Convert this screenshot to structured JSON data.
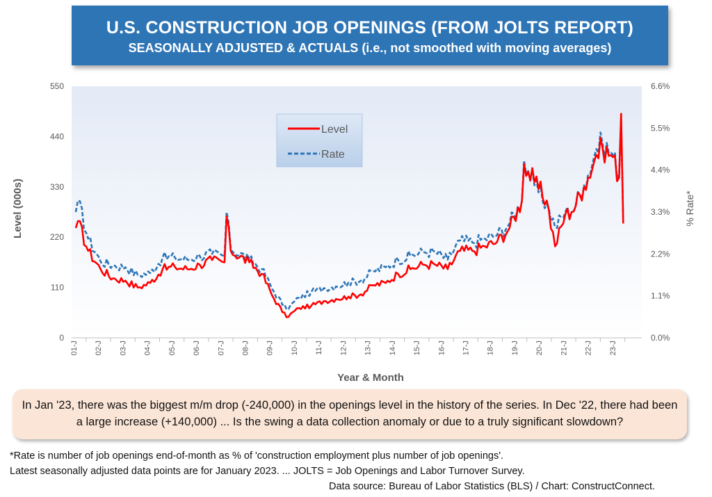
{
  "header": {
    "title": "U.S. CONSTRUCTION JOB OPENINGS (FROM JOLTS REPORT)",
    "subtitle": "SEASONALLY ADJUSTED & ACTUALS (i.e., not smoothed with moving averages)"
  },
  "chart_data": {
    "type": "line",
    "xlabel": "Year & Month",
    "ylabel": "Level (000s)",
    "y2label": "% Rate*",
    "ylim": [
      0,
      550
    ],
    "y2lim": [
      0,
      6.6
    ],
    "yticks": [
      "0",
      "110",
      "220",
      "330",
      "440",
      "550"
    ],
    "y2ticks": [
      "0.0%",
      "1.1%",
      "2.2%",
      "3.3%",
      "4.4%",
      "5.5%",
      "6.6%"
    ],
    "xticks": [
      "01-J",
      "02-J",
      "03-J",
      "04-J",
      "05-J",
      "06-J",
      "07-J",
      "08-J",
      "09-J",
      "10-J",
      "11-J",
      "12-J",
      "13-J",
      "14-J",
      "15-J",
      "16-J",
      "17-J",
      "18-J",
      "19-J",
      "20-J",
      "21-J",
      "22-J",
      "23-J"
    ],
    "legend": {
      "position": "top-center",
      "items": [
        "Level",
        "Rate"
      ]
    },
    "grid": false,
    "series": [
      {
        "name": "Level",
        "color": "#ff0000",
        "style": "solid",
        "axis": "left",
        "anchors": [
          [
            "2000-12",
            240
          ],
          [
            "2001-01",
            255
          ],
          [
            "2001-06",
            190
          ],
          [
            "2001-12",
            150
          ],
          [
            "2002-06",
            130
          ],
          [
            "2002-12",
            125
          ],
          [
            "2003-06",
            110
          ],
          [
            "2003-12",
            120
          ],
          [
            "2004-06",
            150
          ],
          [
            "2004-12",
            155
          ],
          [
            "2005-06",
            150
          ],
          [
            "2005-12",
            160
          ],
          [
            "2006-06",
            170
          ],
          [
            "2006-12",
            165
          ],
          [
            "2007-01",
            265
          ],
          [
            "2007-03",
            190
          ],
          [
            "2007-12",
            165
          ],
          [
            "2008-06",
            140
          ],
          [
            "2008-12",
            85
          ],
          [
            "2009-06",
            45
          ],
          [
            "2009-12",
            65
          ],
          [
            "2010-06",
            70
          ],
          [
            "2010-12",
            80
          ],
          [
            "2011-06",
            85
          ],
          [
            "2011-12",
            90
          ],
          [
            "2012-06",
            95
          ],
          [
            "2012-12",
            115
          ],
          [
            "2013-06",
            120
          ],
          [
            "2013-12",
            140
          ],
          [
            "2014-06",
            150
          ],
          [
            "2014-12",
            160
          ],
          [
            "2015-06",
            160
          ],
          [
            "2015-12",
            150
          ],
          [
            "2016-06",
            190
          ],
          [
            "2016-12",
            190
          ],
          [
            "2017-06",
            200
          ],
          [
            "2017-12",
            210
          ],
          [
            "2018-06",
            240
          ],
          [
            "2018-12",
            300
          ],
          [
            "2019-01",
            380
          ],
          [
            "2019-06",
            340
          ],
          [
            "2019-12",
            300
          ],
          [
            "2020-04",
            200
          ],
          [
            "2020-09",
            270
          ],
          [
            "2020-12",
            275
          ],
          [
            "2021-06",
            330
          ],
          [
            "2021-12",
            400
          ],
          [
            "2022-03",
            415
          ],
          [
            "2022-08",
            395
          ],
          [
            "2022-11",
            350
          ],
          [
            "2022-12",
            490
          ],
          [
            "2023-01",
            250
          ]
        ]
      },
      {
        "name": "Rate",
        "color": "#2e75b6",
        "style": "dashed",
        "axis": "right",
        "anchors": [
          [
            "2000-12",
            3.3
          ],
          [
            "2001-01",
            3.6
          ],
          [
            "2001-06",
            2.6
          ],
          [
            "2001-12",
            2.0
          ],
          [
            "2002-06",
            1.9
          ],
          [
            "2002-12",
            1.85
          ],
          [
            "2003-06",
            1.65
          ],
          [
            "2003-12",
            1.7
          ],
          [
            "2004-06",
            2.1
          ],
          [
            "2004-12",
            2.1
          ],
          [
            "2005-06",
            2.05
          ],
          [
            "2005-12",
            2.15
          ],
          [
            "2006-06",
            2.2
          ],
          [
            "2006-12",
            2.15
          ],
          [
            "2007-01",
            3.3
          ],
          [
            "2007-03",
            2.35
          ],
          [
            "2007-12",
            2.05
          ],
          [
            "2008-06",
            1.8
          ],
          [
            "2008-12",
            1.2
          ],
          [
            "2009-06",
            0.75
          ],
          [
            "2009-12",
            1.05
          ],
          [
            "2010-06",
            1.2
          ],
          [
            "2010-12",
            1.3
          ],
          [
            "2011-06",
            1.35
          ],
          [
            "2011-12",
            1.45
          ],
          [
            "2012-06",
            1.5
          ],
          [
            "2012-12",
            1.75
          ],
          [
            "2013-06",
            1.85
          ],
          [
            "2013-12",
            2.05
          ],
          [
            "2014-06",
            2.15
          ],
          [
            "2014-12",
            2.25
          ],
          [
            "2015-06",
            2.25
          ],
          [
            "2015-12",
            2.05
          ],
          [
            "2016-06",
            2.55
          ],
          [
            "2016-12",
            2.5
          ],
          [
            "2017-06",
            2.6
          ],
          [
            "2017-12",
            2.7
          ],
          [
            "2018-06",
            3.0
          ],
          [
            "2018-12",
            3.6
          ],
          [
            "2019-01",
            4.65
          ],
          [
            "2019-06",
            4.0
          ],
          [
            "2019-12",
            3.5
          ],
          [
            "2020-04",
            2.9
          ],
          [
            "2020-09",
            3.3
          ],
          [
            "2020-12",
            3.3
          ],
          [
            "2021-06",
            4.0
          ],
          [
            "2021-12",
            4.95
          ],
          [
            "2022-03",
            5.1
          ],
          [
            "2022-08",
            4.8
          ],
          [
            "2022-11",
            4.3
          ],
          [
            "2022-12",
            5.75
          ],
          [
            "2023-01",
            3.05
          ]
        ]
      }
    ]
  },
  "callout": {
    "text": "In Jan '23, there was the biggest m/m drop (-240,000) in the openings level in the history of the series. In Dec '22, there had been a large increase (+140,000) ... Is the swing a data collection anomaly or due to a truly significant slowdown?"
  },
  "footnotes": {
    "line1": "*Rate is number of job openings end-of-month as % of 'construction employment plus number of job openings'.",
    "line2": "Latest seasonally adjusted data points are for January 2023. ... JOLTS = Job Openings and Labor Turnover Survey.",
    "source": "Data source: Bureau of Labor Statistics (BLS) / Chart: ConstructConnect."
  }
}
